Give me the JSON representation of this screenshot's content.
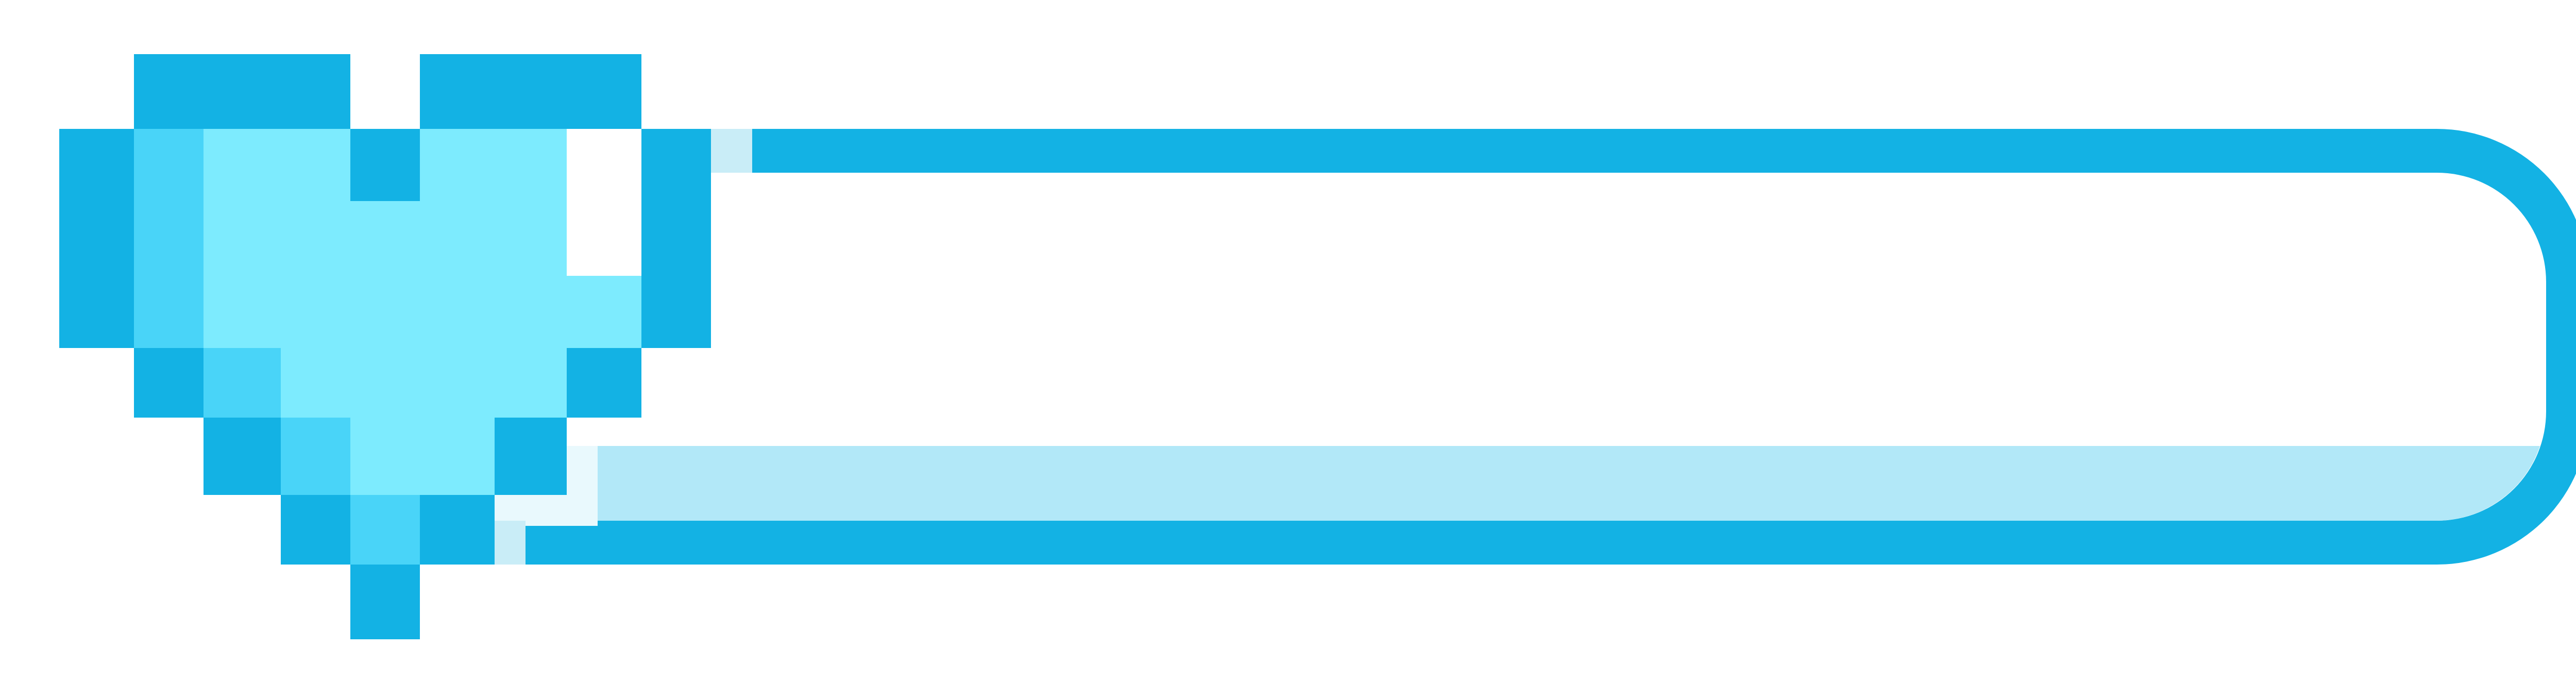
{
  "health_bar": {
    "icon": "pixel-heart-icon",
    "health_fraction": 0.0,
    "colors": {
      "outline": "#13b2e4",
      "heart_fill": "#7debfe",
      "heart_shade": "#49d4f8",
      "bar_inner": "#ffffff",
      "bar_shadow": "#b2e8f8",
      "highlight": "#e9f9fd",
      "tint": "#c9edf7"
    }
  }
}
